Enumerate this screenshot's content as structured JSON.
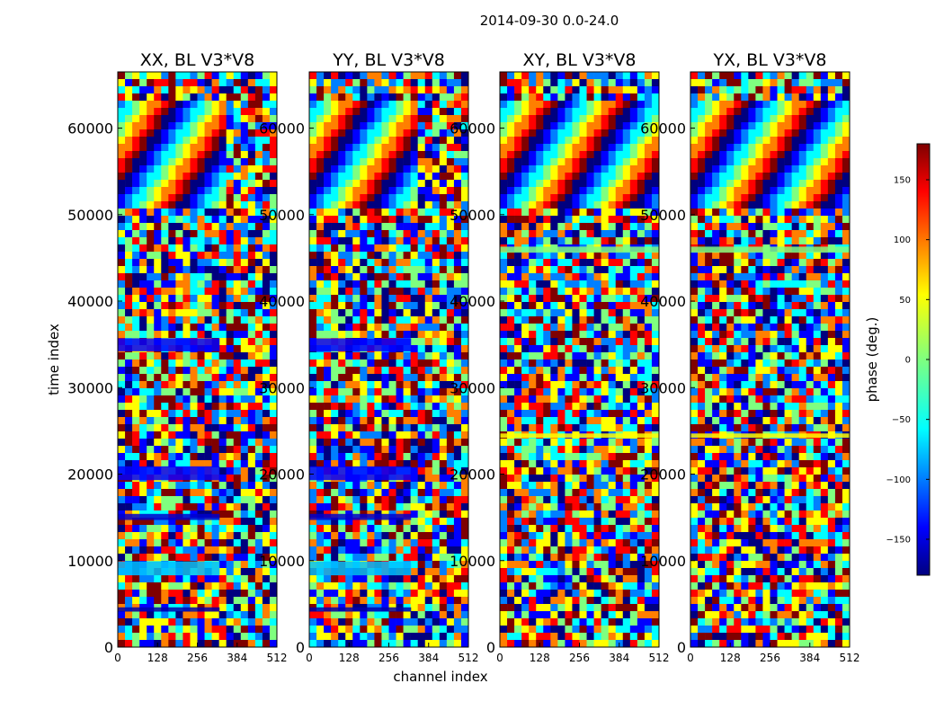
{
  "suptitle": "2014-09-30 0.0-24.0",
  "xlabel": "channel index",
  "ylabel": "time index",
  "colorbar_label": "phase (deg.)",
  "colorbar_ticks": [
    "150",
    "100",
    "50",
    "0",
    "−50",
    "−100",
    "−150"
  ],
  "colorbar_tick_values": [
    150,
    100,
    50,
    0,
    -50,
    -100,
    -150
  ],
  "colorbar_range": [
    -180,
    180
  ],
  "colormap": [
    "#00007f",
    "#0000ff",
    "#007fff",
    "#00ffff",
    "#7fff7f",
    "#ffff00",
    "#ff7f00",
    "#ff0000",
    "#7f0000"
  ],
  "chart_data": [
    {
      "type": "heatmap",
      "title": "XX, BL V3*V8",
      "xticks": [
        "0",
        "128",
        "256",
        "384",
        "512"
      ],
      "xtick_values": [
        0,
        128,
        256,
        384,
        512
      ],
      "yticks": [
        "0",
        "10000",
        "20000",
        "30000",
        "40000",
        "50000",
        "60000"
      ],
      "ytick_values": [
        0,
        10000,
        20000,
        30000,
        40000,
        50000,
        60000
      ],
      "xlim": [
        0,
        512
      ],
      "ylim": [
        0,
        66500
      ],
      "value": "phase (deg.)"
    },
    {
      "type": "heatmap",
      "title": "YY, BL V3*V8",
      "xticks": [
        "0",
        "128",
        "256",
        "384",
        "512"
      ],
      "xtick_values": [
        0,
        128,
        256,
        384,
        512
      ],
      "yticks": [
        "0",
        "10000",
        "20000",
        "30000",
        "40000",
        "50000",
        "60000"
      ],
      "ytick_values": [
        0,
        10000,
        20000,
        30000,
        40000,
        50000,
        60000
      ],
      "xlim": [
        0,
        512
      ],
      "ylim": [
        0,
        66500
      ],
      "value": "phase (deg.)"
    },
    {
      "type": "heatmap",
      "title": "XY, BL V3*V8",
      "xticks": [
        "0",
        "128",
        "256",
        "384",
        "512"
      ],
      "xtick_values": [
        0,
        128,
        256,
        384,
        512
      ],
      "yticks": [
        "0",
        "10000",
        "20000",
        "30000",
        "40000",
        "50000",
        "60000"
      ],
      "ytick_values": [
        0,
        10000,
        20000,
        30000,
        40000,
        50000,
        60000
      ],
      "xlim": [
        0,
        512
      ],
      "ylim": [
        0,
        66500
      ],
      "value": "phase (deg.)"
    },
    {
      "type": "heatmap",
      "title": "YX, BL V3*V8",
      "xticks": [
        "0",
        "128",
        "256",
        "384",
        "512"
      ],
      "xtick_values": [
        0,
        128,
        256,
        384,
        512
      ],
      "yticks": [
        "0",
        "10000",
        "20000",
        "30000",
        "40000",
        "50000",
        "60000"
      ],
      "ytick_values": [
        0,
        10000,
        20000,
        30000,
        40000,
        50000,
        60000
      ],
      "xlim": [
        0,
        512
      ],
      "ylim": [
        0,
        66500
      ],
      "value": "phase (deg.)"
    }
  ]
}
